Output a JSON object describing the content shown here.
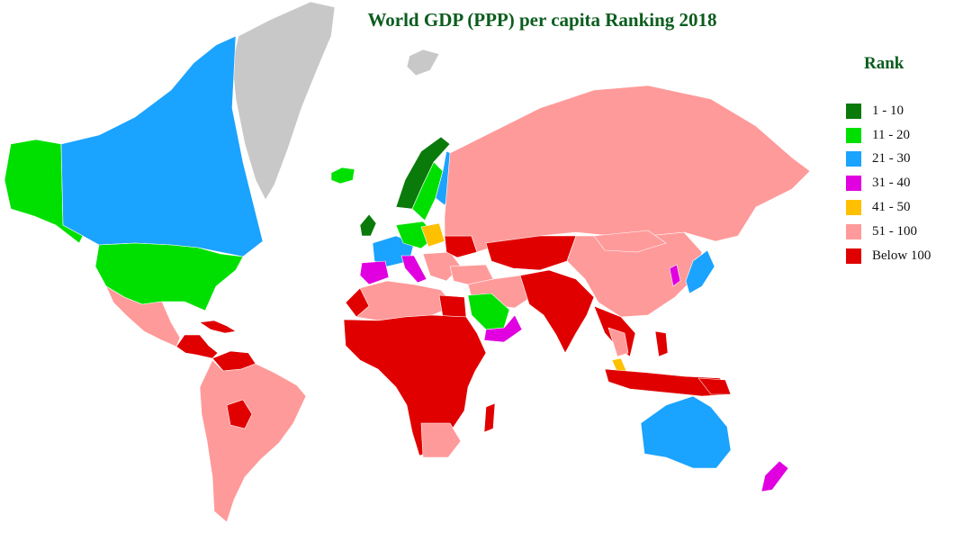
{
  "title": "World GDP (PPP) per capita Ranking 2018",
  "legend": {
    "title": "Rank",
    "items": [
      {
        "label": "1 - 10",
        "color": "#0a7a0a"
      },
      {
        "label": "11 - 20",
        "color": "#00e000"
      },
      {
        "label": "21 - 30",
        "color": "#1aa3ff"
      },
      {
        "label": "31 - 40",
        "color": "#e000e0"
      },
      {
        "label": "41 - 50",
        "color": "#ffc000"
      },
      {
        "label": "51 - 100",
        "color": "#ff9a9a"
      },
      {
        "label": "Below 100",
        "color": "#e00000"
      }
    ]
  },
  "no_data_color": "#c8c8c8"
}
